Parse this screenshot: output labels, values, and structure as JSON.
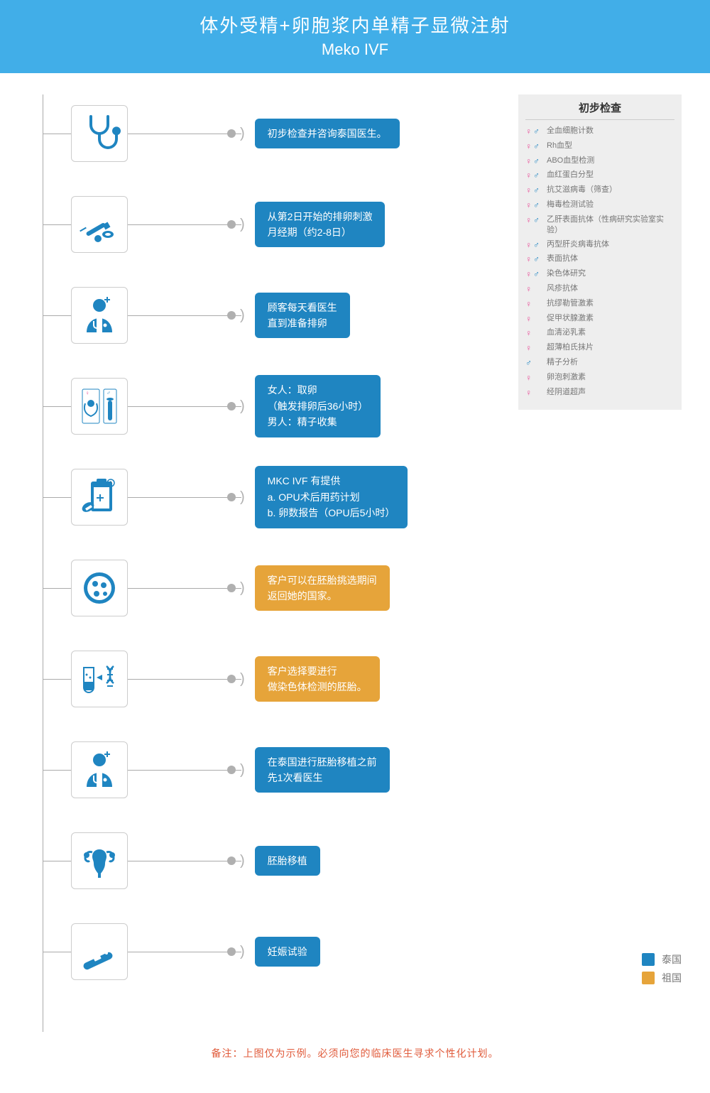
{
  "colors": {
    "header_bg": "#41aee8",
    "step_blue": "#1f85c1",
    "step_orange": "#e6a43a",
    "icon_fill": "#1f85c1",
    "female_symbol": "#e8549b",
    "male_symbol": "#1f85c1",
    "line_gray": "#aaaaaa",
    "bullet_gray": "#b0b0b0",
    "sidebar_bg": "#eeeeee",
    "footnote_color": "#e05a3a"
  },
  "header": {
    "title": "体外受精+卵胞浆内单精子显微注射",
    "subtitle": "Meko IVF"
  },
  "steps": [
    {
      "icon": "stethoscope",
      "color": "blue",
      "text": "初步检查并咨询泰国医生。"
    },
    {
      "icon": "syringe-pills",
      "color": "blue",
      "text": "从第2日开始的排卵刺激\n月经期（约2-8日）"
    },
    {
      "icon": "doctor",
      "color": "blue",
      "text": "顾客每天看医生\n直到准备排卵"
    },
    {
      "icon": "repro-vial",
      "color": "blue",
      "text": "女人：取卵\n（触发排卵后36小时）\n男人：精子收集"
    },
    {
      "icon": "clipboard-med",
      "color": "blue",
      "text": "MKC IVF 有提供\na. OPU术后用药计划\nb. 卵数报告（OPU后5小时）"
    },
    {
      "icon": "petri",
      "color": "orange",
      "text": "客户可以在胚胎挑选期间\n返回她的国家。"
    },
    {
      "icon": "beaker-dna",
      "color": "orange",
      "text": "客户选择要进行\n做染色体检测的胚胎。"
    },
    {
      "icon": "doctor",
      "color": "blue",
      "text": "在泰国进行胚胎移植之前\n先1次看医生"
    },
    {
      "icon": "uterus",
      "color": "blue",
      "text": "胚胎移植"
    },
    {
      "icon": "preg-test",
      "color": "blue",
      "text": "妊娠试验"
    }
  ],
  "sidebar": {
    "title": "初步检查",
    "items": [
      {
        "gender": "fm",
        "text": "全血细胞计数"
      },
      {
        "gender": "fm",
        "text": "Rh血型"
      },
      {
        "gender": "fm",
        "text": "ABO血型检测"
      },
      {
        "gender": "fm",
        "text": "血红蛋白分型"
      },
      {
        "gender": "fm",
        "text": "抗艾滋病毒（筛查）"
      },
      {
        "gender": "fm",
        "text": "梅毒检测试验"
      },
      {
        "gender": "fm",
        "text": "乙肝表面抗体（性病研究实验室实验）"
      },
      {
        "gender": "fm",
        "text": "丙型肝炎病毒抗体"
      },
      {
        "gender": "fm",
        "text": "表面抗体"
      },
      {
        "gender": "fm",
        "text": "染色体研究"
      },
      {
        "gender": "f",
        "text": "风疹抗体"
      },
      {
        "gender": "f",
        "text": "抗缪勒管激素"
      },
      {
        "gender": "f",
        "text": "促甲状腺激素"
      },
      {
        "gender": "f",
        "text": "血清泌乳素"
      },
      {
        "gender": "f",
        "text": "超薄柏氏抹片"
      },
      {
        "gender": "m",
        "text": "精子分析"
      },
      {
        "gender": "f",
        "text": "卵泡刺激素"
      },
      {
        "gender": "f",
        "text": "经阴道超声"
      }
    ]
  },
  "legend": {
    "thailand": {
      "label": "泰国",
      "color": "#1f85c1"
    },
    "home": {
      "label": "祖国",
      "color": "#e6a43a"
    }
  },
  "footnote": "备注：上图仅为示例。必须向您的临床医生寻求个性化计划。"
}
